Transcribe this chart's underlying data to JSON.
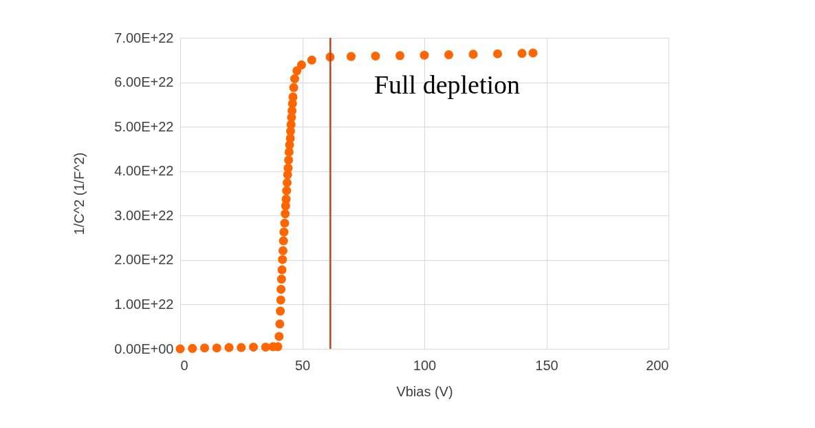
{
  "chart_data": {
    "type": "scatter",
    "xlabel": "Vbias (V)",
    "ylabel": "1/C^2 (1/F^2)",
    "x": [
      0,
      5,
      10,
      15,
      20,
      25,
      30,
      35,
      38,
      40,
      40.5,
      40.8,
      41.0,
      41.2,
      41.3,
      41.5,
      41.7,
      41.9,
      42.1,
      42.3,
      42.5,
      42.8,
      43.0,
      43.2,
      43.4,
      43.6,
      43.8,
      44.0,
      44.2,
      44.4,
      44.6,
      44.8,
      45.1,
      45.2,
      45.4,
      45.6,
      45.8,
      46.0,
      46.2,
      46.5,
      46.9,
      47.8,
      49.7,
      53.9,
      61.4,
      70,
      80,
      90,
      100,
      110,
      120,
      130,
      140,
      144.5
    ],
    "series": [
      {
        "color": "#ff6600",
        "values": [
          0.0,
          1e+20,
          2e+20,
          2e+20,
          3e+20,
          3e+20,
          4e+20,
          4e+20,
          5e+20,
          5e+20,
          2.8e+21,
          5.6e+21,
          8.5e+21,
          1.1e+22,
          1.34e+22,
          1.57e+22,
          1.78e+22,
          2.01e+22,
          2.21e+22,
          2.43e+22,
          2.63e+22,
          2.83e+22,
          3.04e+22,
          3.22e+22,
          3.37e+22,
          3.56e+22,
          3.74e+22,
          3.92e+22,
          4.07e+22,
          4.25e+22,
          4.43e+22,
          4.59e+22,
          4.74e+22,
          4.9e+22,
          5.05e+22,
          5.21e+22,
          5.36e+22,
          5.52e+22,
          5.67e+22,
          5.88e+22,
          6.08e+22,
          6.26e+22,
          6.39e+22,
          6.5e+22,
          6.57e+22,
          6.58e+22,
          6.59e+22,
          6.6e+22,
          6.61e+22,
          6.62e+22,
          6.63e+22,
          6.64e+22,
          6.65e+22,
          6.66e+22
        ]
      }
    ],
    "xlim": [
      0,
      200
    ],
    "xticks": [
      0,
      50,
      100,
      150,
      200
    ],
    "ylim": [
      0,
      7e+22
    ],
    "yticks": [
      {
        "value": 0,
        "label": "0.00E+00"
      },
      {
        "value": 1e+22,
        "label": "1.00E+22"
      },
      {
        "value": 2e+22,
        "label": "2.00E+22"
      },
      {
        "value": 3e+22,
        "label": "3.00E+22"
      },
      {
        "value": 4e+22,
        "label": "4.00E+22"
      },
      {
        "value": 5e+22,
        "label": "5.00E+22"
      },
      {
        "value": 6e+22,
        "label": "6.00E+22"
      },
      {
        "value": 7e+22,
        "label": "7.00E+22"
      }
    ],
    "grid": true,
    "marker": "circle",
    "ref_lines": [
      {
        "axis": "x",
        "value": 61.5,
        "color": "#c0441a"
      }
    ],
    "annotations": [
      "Full depletion"
    ]
  }
}
